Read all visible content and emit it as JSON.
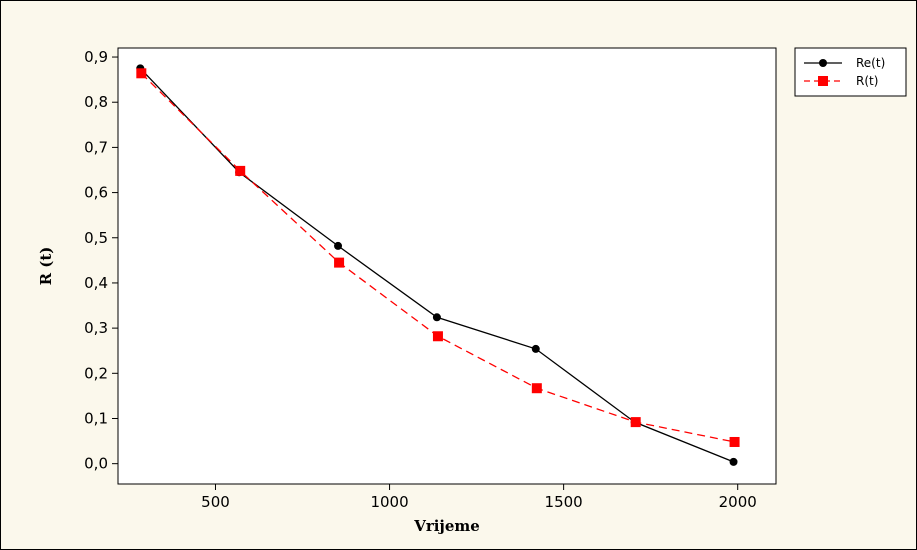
{
  "chart_data": {
    "type": "line",
    "title": "",
    "xlabel": "Vrijeme",
    "ylabel": "R (t)",
    "xlim": [
      220,
      2110
    ],
    "ylim": [
      -0.045,
      0.92
    ],
    "xticks": [
      500,
      1000,
      1500,
      2000
    ],
    "xtick_labels": [
      "500",
      "1000",
      "1500",
      "2000"
    ],
    "yticks": [
      0.0,
      0.1,
      0.2,
      0.3,
      0.4,
      0.5,
      0.6,
      0.7,
      0.8,
      0.9
    ],
    "ytick_labels": [
      "0,0",
      "0,1",
      "0,2",
      "0,3",
      "0,4",
      "0,5",
      "0,6",
      "0,7",
      "0,8",
      "0,9"
    ],
    "grid": false,
    "legend_position": "outside-top-right",
    "series": [
      {
        "name": "Re(t)",
        "color": "#000000",
        "marker": "circle",
        "line_style": "solid",
        "x": [
          284,
          568,
          852,
          1136,
          1420,
          1704,
          1988
        ],
        "y": [
          0.875,
          0.645,
          0.482,
          0.324,
          0.254,
          0.092,
          0.004
        ]
      },
      {
        "name": "R(t)",
        "color": "#ff0000",
        "marker": "square",
        "line_style": "dashed",
        "x": [
          287,
          571,
          855,
          1139,
          1423,
          1707,
          1991
        ],
        "y": [
          0.864,
          0.648,
          0.445,
          0.282,
          0.167,
          0.092,
          0.048
        ]
      }
    ]
  },
  "colors": {
    "background": "#fbf8ec",
    "plot_area": "#ffffff"
  }
}
